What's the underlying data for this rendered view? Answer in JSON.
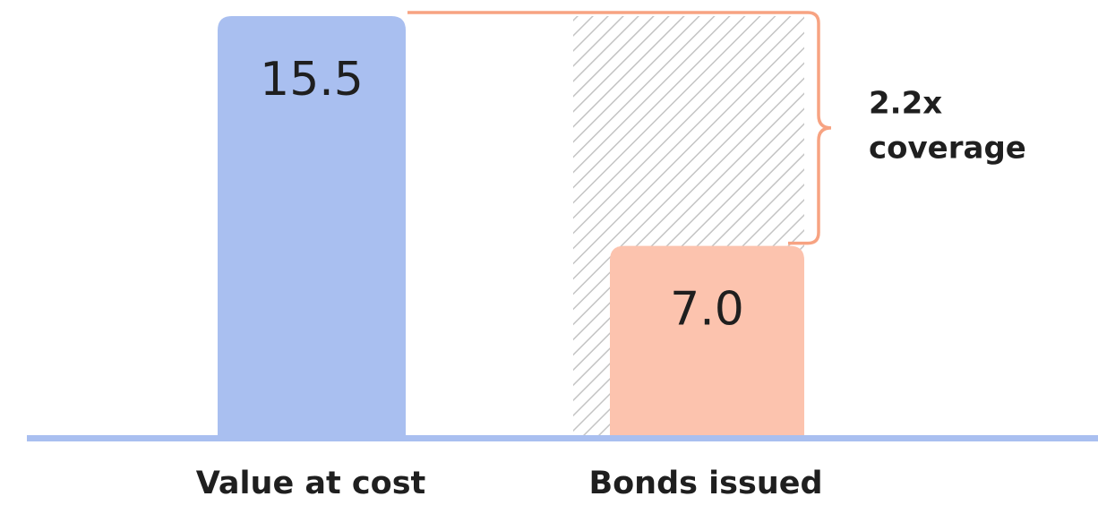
{
  "chart_data": {
    "type": "bar",
    "categories": [
      "Value at cost",
      "Bonds issued"
    ],
    "values": [
      15.5,
      7.0
    ],
    "value_labels": [
      "15.5",
      "7.0"
    ],
    "colors": [
      "#a9bff0",
      "#fcc3ae"
    ],
    "ylim": [
      0,
      15.5
    ],
    "annotation": [
      "2.2x",
      "coverage"
    ],
    "annotation_color": "#f7a382"
  }
}
